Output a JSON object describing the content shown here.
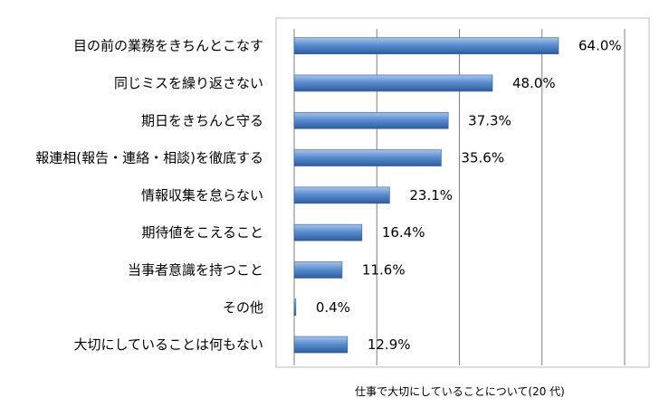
{
  "chart_data": {
    "type": "bar",
    "orientation": "horizontal",
    "categories": [
      "目の前の業務をきちんとこなす",
      "同じミスを繰り返さない",
      "期日をきちんと守る",
      "報連相(報告・連絡・相談)を徹底する",
      "情報収集を怠らない",
      "期待値をこえること",
      "当事者意識を持つこと",
      "その他",
      "大切にしていることは何もない"
    ],
    "values": [
      64.0,
      48.0,
      37.3,
      35.6,
      23.1,
      16.4,
      11.6,
      0.4,
      12.9
    ],
    "value_labels": [
      "64.0%",
      "48.0%",
      "37.3%",
      "35.6%",
      "23.1%",
      "16.4%",
      "11.6%",
      "0.4%",
      "12.9%"
    ],
    "series": [
      {
        "values": [
          64.0,
          48.0,
          37.3,
          35.6,
          23.1,
          16.4,
          11.6,
          0.4,
          12.9
        ]
      }
    ],
    "caption": "仕事で大切にしていることについて(20 代)",
    "xlim": [
      0,
      80
    ],
    "grid": true,
    "bar_color": "#4f81bd"
  }
}
